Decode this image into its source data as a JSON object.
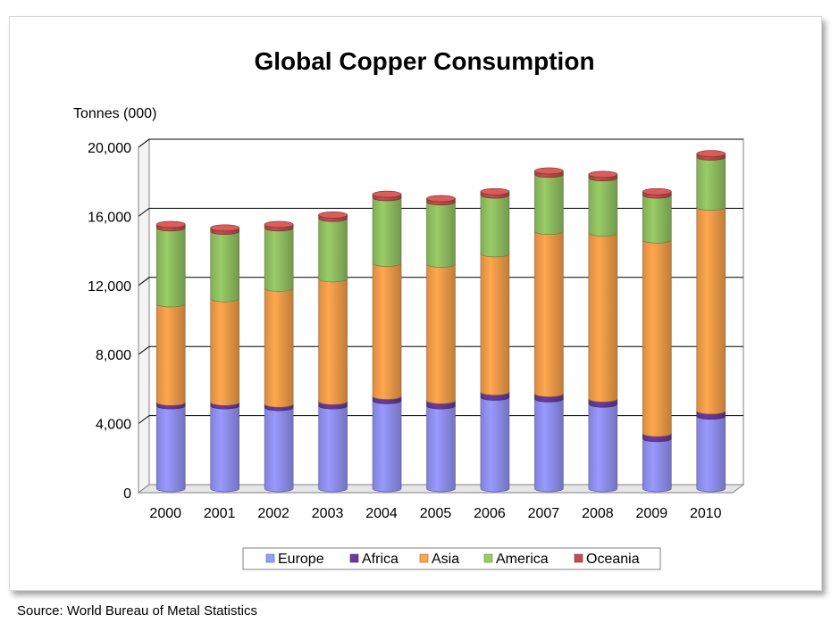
{
  "source_note": "Source: World Bureau of Metal Statistics",
  "chart_data": {
    "type": "bar",
    "stacked": true,
    "style": "3d-cylinder",
    "title": "Global Copper Consumption",
    "ylabel": "Tonnes (000)",
    "xlabel": "",
    "ylim": [
      0,
      20000
    ],
    "yticks": [
      0,
      4000,
      8000,
      12000,
      16000,
      20000
    ],
    "ytick_labels": [
      "0",
      "4,000",
      "8,000",
      "12,000",
      "16,000",
      "20,000"
    ],
    "grid": true,
    "legend_position": "bottom",
    "categories": [
      "2000",
      "2001",
      "2002",
      "2003",
      "2004",
      "2005",
      "2006",
      "2007",
      "2008",
      "2009",
      "2010"
    ],
    "series": [
      {
        "name": "Europe",
        "color": "#9999ff",
        "values": [
          4800,
          4800,
          4700,
          4800,
          5100,
          4800,
          5300,
          5200,
          4900,
          2900,
          4200
        ]
      },
      {
        "name": "Africa",
        "color": "#6a3aa0",
        "values": [
          200,
          200,
          200,
          250,
          250,
          300,
          300,
          300,
          300,
          300,
          300
        ]
      },
      {
        "name": "Asia",
        "color": "#ffa64d",
        "values": [
          5700,
          6000,
          6700,
          7100,
          7700,
          7900,
          8000,
          9400,
          9600,
          11200,
          11800
        ]
      },
      {
        "name": "America",
        "color": "#99cc66",
        "values": [
          4400,
          3900,
          3500,
          3500,
          3800,
          3600,
          3400,
          3300,
          3200,
          2600,
          2900
        ]
      },
      {
        "name": "Oceania",
        "color": "#c0504d",
        "values": [
          200,
          200,
          200,
          200,
          200,
          200,
          200,
          200,
          200,
          200,
          200
        ]
      }
    ]
  }
}
